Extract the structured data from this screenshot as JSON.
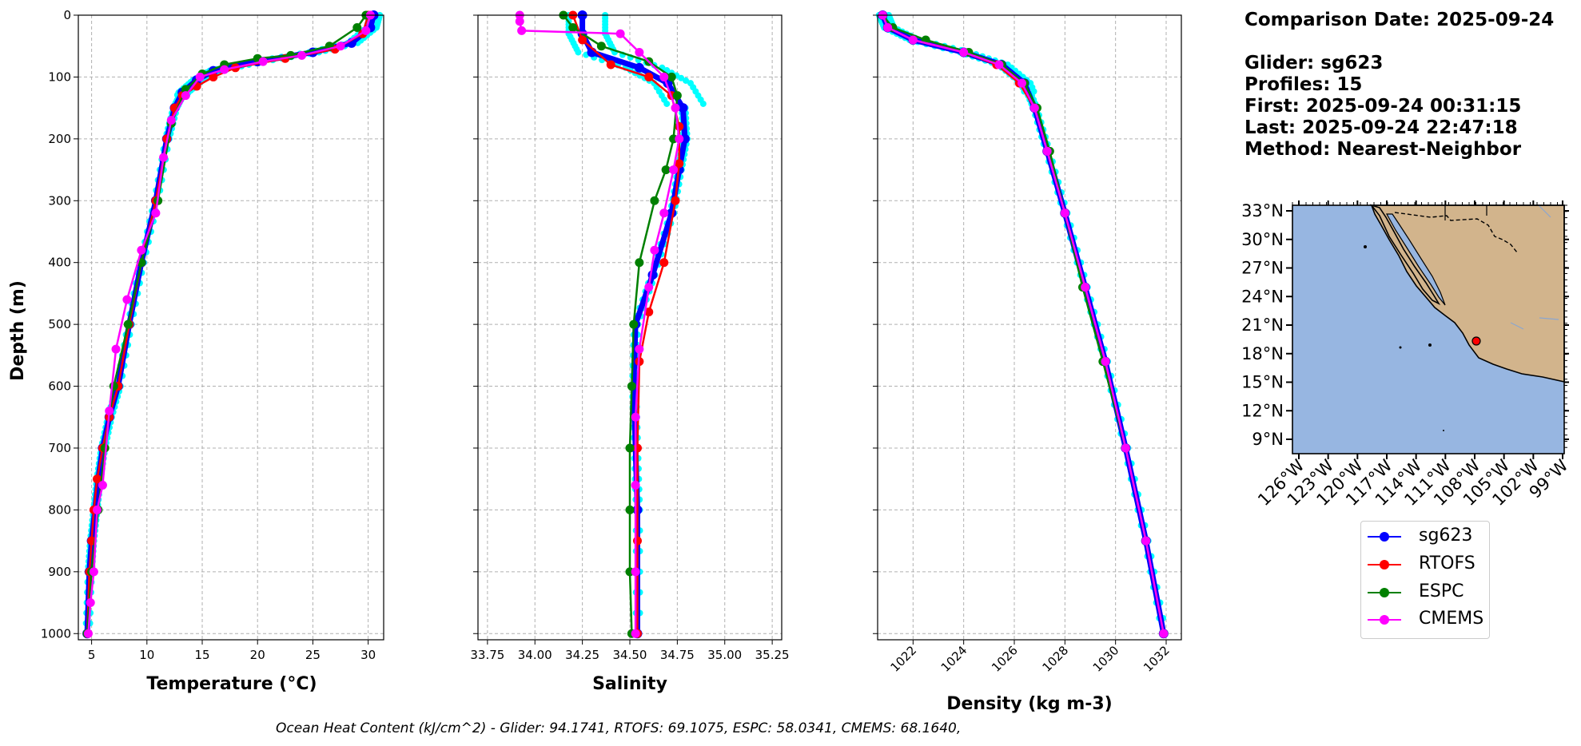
{
  "chart_data": [
    {
      "type": "line",
      "panel": "temperature",
      "xlabel": "Temperature (°C)",
      "ylabel": "Depth (m)",
      "xlim": [
        3.8,
        31.4
      ],
      "ylim": [
        1010,
        0
      ],
      "xticks": [
        5,
        10,
        15,
        20,
        25,
        30
      ],
      "yticks": [
        0,
        100,
        200,
        300,
        400,
        500,
        600,
        700,
        800,
        900,
        1000
      ],
      "grid": true,
      "series": [
        {
          "name": "sg623",
          "color": "#0000ff",
          "x": [
            30.5,
            30.2,
            28.5,
            25,
            20,
            16,
            14.5,
            13.2,
            12.5,
            11.8,
            10.8,
            9.5,
            8.4,
            7.4,
            6.6,
            6.0,
            5.6,
            5.3,
            5.0,
            4.8,
            4.6
          ],
          "y": [
            0,
            20,
            45,
            60,
            75,
            90,
            105,
            125,
            150,
            200,
            300,
            400,
            500,
            600,
            650,
            700,
            750,
            800,
            850,
            900,
            1000
          ]
        },
        {
          "name": "RTOFS",
          "color": "#ff0000",
          "x": [
            30,
            29.5,
            27,
            22.5,
            18,
            16,
            14.5,
            13.2,
            12.5,
            11.8,
            10.8,
            9.5,
            8.4,
            7.4,
            6.6,
            6.0,
            5.5,
            5.2,
            5.0,
            4.8,
            4.6
          ],
          "y": [
            0,
            30,
            55,
            70,
            85,
            100,
            115,
            130,
            150,
            200,
            300,
            400,
            500,
            600,
            650,
            700,
            750,
            800,
            850,
            900,
            1000
          ]
        },
        {
          "name": "ESPC",
          "color": "#008000",
          "x": [
            29.8,
            29,
            26.5,
            23,
            20,
            17,
            15,
            13.5,
            12.2,
            11,
            9.5,
            8.3,
            7.0,
            6.2,
            5.6,
            5.0,
            4.6
          ],
          "y": [
            0,
            20,
            50,
            65,
            70,
            80,
            95,
            120,
            175,
            300,
            400,
            500,
            600,
            700,
            800,
            900,
            1000
          ]
        },
        {
          "name": "CMEMS",
          "color": "#ff00ff",
          "x": [
            30.2,
            29.8,
            27.5,
            24,
            20.5,
            17,
            14.8,
            13.5,
            12.2,
            11.5,
            10.8,
            9.5,
            8.2,
            7.2,
            6.6,
            6.0,
            5.5,
            5.2,
            4.9,
            4.7
          ],
          "y": [
            0,
            25,
            50,
            65,
            75,
            88,
            100,
            130,
            170,
            230,
            320,
            380,
            460,
            540,
            640,
            760,
            800,
            900,
            950,
            1000
          ]
        }
      ]
    },
    {
      "type": "line",
      "panel": "salinity",
      "xlabel": "Salinity",
      "xlim": [
        33.7,
        35.3
      ],
      "ylim": [
        1010,
        0
      ],
      "xticks": [
        33.75,
        34.0,
        34.25,
        34.5,
        34.75,
        35.0,
        35.25
      ],
      "grid": true,
      "series": [
        {
          "name": "sg623",
          "color": "#0000ff",
          "x": [
            34.25,
            34.25,
            34.3,
            34.55,
            34.7,
            34.78,
            34.79,
            34.76,
            34.72,
            34.62,
            34.53,
            34.52,
            34.53,
            34.54,
            34.54
          ],
          "y": [
            0,
            30,
            60,
            85,
            110,
            150,
            200,
            250,
            320,
            420,
            500,
            600,
            700,
            800,
            1000
          ]
        },
        {
          "name": "RTOFS",
          "color": "#ff0000",
          "x": [
            34.2,
            34.25,
            34.4,
            34.6,
            34.72,
            34.76,
            34.76,
            34.74,
            34.68,
            34.6,
            34.55,
            34.54,
            34.54,
            34.54
          ],
          "y": [
            0,
            40,
            80,
            100,
            130,
            180,
            240,
            300,
            400,
            480,
            560,
            700,
            850,
            1000
          ]
        },
        {
          "name": "ESPC",
          "color": "#008000",
          "x": [
            34.15,
            34.2,
            34.35,
            34.6,
            34.72,
            34.75,
            34.73,
            34.69,
            34.63,
            34.55,
            34.52,
            34.51,
            34.5,
            34.5,
            34.5,
            34.51
          ],
          "y": [
            0,
            20,
            50,
            75,
            100,
            130,
            200,
            250,
            300,
            400,
            500,
            600,
            700,
            800,
            900,
            1000
          ]
        },
        {
          "name": "CMEMS",
          "color": "#ff00ff",
          "x": [
            33.92,
            33.92,
            33.93,
            34.45,
            34.55,
            34.68,
            34.74,
            34.76,
            34.73,
            34.68,
            34.63,
            34.6,
            34.55,
            34.53,
            34.53,
            34.53,
            34.53
          ],
          "y": [
            0,
            10,
            25,
            30,
            60,
            100,
            150,
            200,
            250,
            320,
            380,
            440,
            540,
            650,
            760,
            900,
            1000
          ]
        }
      ]
    },
    {
      "type": "line",
      "panel": "density",
      "xlabel": "Density (kg m-3)",
      "xlim": [
        1020.6,
        1032.6
      ],
      "ylim": [
        1010,
        0
      ],
      "xticks": [
        1022,
        1024,
        1026,
        1028,
        1030,
        1032
      ],
      "grid": true,
      "series": [
        {
          "name": "sg623",
          "color": "#0000ff",
          "x": [
            1020.8,
            1021.0,
            1022.0,
            1024.0,
            1025.5,
            1026.4,
            1026.8,
            1027.3,
            1028.0,
            1028.8,
            1029.6,
            1030.4,
            1031.2,
            1031.9
          ],
          "y": [
            0,
            20,
            40,
            60,
            80,
            110,
            150,
            220,
            320,
            440,
            560,
            700,
            850,
            1000
          ]
        },
        {
          "name": "RTOFS",
          "color": "#ff0000",
          "x": [
            1020.8,
            1021.0,
            1022.0,
            1024.0,
            1025.3,
            1026.2,
            1026.8,
            1027.3,
            1028.0,
            1028.8,
            1029.6,
            1030.4,
            1031.2,
            1031.9
          ],
          "y": [
            0,
            20,
            40,
            60,
            80,
            110,
            150,
            220,
            320,
            440,
            560,
            700,
            850,
            1000
          ]
        },
        {
          "name": "ESPC",
          "color": "#008000",
          "x": [
            1020.8,
            1021.2,
            1022.5,
            1024.2,
            1025.5,
            1026.4,
            1026.9,
            1027.4,
            1028.0,
            1028.7,
            1029.5,
            1030.4,
            1031.2,
            1031.9
          ],
          "y": [
            0,
            20,
            40,
            60,
            80,
            110,
            150,
            220,
            320,
            440,
            560,
            700,
            850,
            1000
          ]
        },
        {
          "name": "CMEMS",
          "color": "#ff00ff",
          "x": [
            1020.8,
            1021.0,
            1022.0,
            1024.0,
            1025.4,
            1026.3,
            1026.8,
            1027.3,
            1028.0,
            1028.8,
            1029.6,
            1030.4,
            1031.2,
            1031.9
          ],
          "y": [
            0,
            20,
            40,
            60,
            80,
            110,
            150,
            220,
            320,
            440,
            560,
            700,
            850,
            1000
          ]
        }
      ]
    }
  ],
  "info": {
    "comparison_date": "Comparison Date: 2025-09-24",
    "glider": "Glider: sg623",
    "profiles": "Profiles: 15",
    "first": "First: 2025-09-24 00:31:15",
    "last": "Last: 2025-09-24 22:47:18",
    "method": "Method: Nearest-Neighbor"
  },
  "map": {
    "lat_labels": [
      "33°N",
      "30°N",
      "27°N",
      "24°N",
      "21°N",
      "18°N",
      "15°N",
      "12°N",
      "9°N"
    ],
    "lon_labels": [
      "126°W",
      "123°W",
      "120°W",
      "117°W",
      "114°W",
      "111°W",
      "108°W",
      "105°W",
      "102°W",
      "99°W"
    ],
    "ocean_color": "#97b6e1",
    "land_color": "#d2b48c",
    "marker_color": "#ff0000",
    "glider_position": {
      "lat": 19.8,
      "lon": -107.6
    }
  },
  "legend": [
    {
      "label": "sg623",
      "color": "#0000ff"
    },
    {
      "label": "RTOFS",
      "color": "#ff0000"
    },
    {
      "label": "ESPC",
      "color": "#008000"
    },
    {
      "label": "CMEMS",
      "color": "#ff00ff"
    }
  ],
  "footer": "Ocean Heat Content (kJ/cm^2) - Glider: 94.1741,  RTOFS: 69.1075,  ESPC: 58.0341,  CMEMS: 68.1640,"
}
